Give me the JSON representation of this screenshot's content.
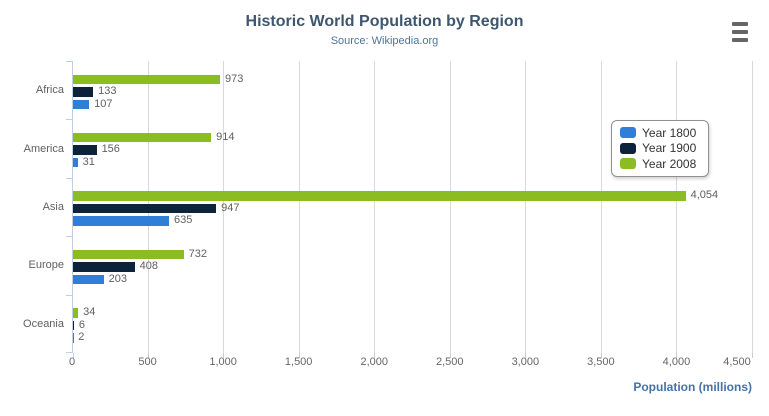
{
  "chart": {
    "export_menu_icon": "hamburger-menu-icon",
    "background_color": "#ffffff",
    "title_color": "#3e576f",
    "subtitle_color": "#4d759e",
    "axis_title_color": "#4572a7",
    "grid_color": "#d8d8d8",
    "axis_line_color": "#c0d0e0",
    "label_color": "#606060",
    "tick_label_color": "#666666"
  },
  "chart_data": {
    "type": "bar",
    "orientation": "horizontal",
    "title": "Historic World Population by Region",
    "subtitle": "Source: Wikipedia.org",
    "categories": [
      "Africa",
      "America",
      "Asia",
      "Europe",
      "Oceania"
    ],
    "series": [
      {
        "name": "Year 1800",
        "color": "#2f7ed8",
        "values": [
          107,
          31,
          635,
          203,
          2
        ]
      },
      {
        "name": "Year 1900",
        "color": "#0d233a",
        "values": [
          133,
          156,
          947,
          408,
          6
        ]
      },
      {
        "name": "Year 2008",
        "color": "#8bbc21",
        "values": [
          973,
          914,
          4054,
          732,
          34
        ]
      }
    ],
    "bar_order_top_to_bottom": [
      "Year 2008",
      "Year 1900",
      "Year 1800"
    ],
    "data_labels": true,
    "xlabel": "Population (millions)",
    "ylabel": "",
    "xlim": [
      0,
      4500
    ],
    "xticks": [
      0,
      500,
      1000,
      1500,
      2000,
      2500,
      3000,
      3500,
      4000,
      4500
    ],
    "grid": true,
    "legend_position": "right-top-box"
  }
}
